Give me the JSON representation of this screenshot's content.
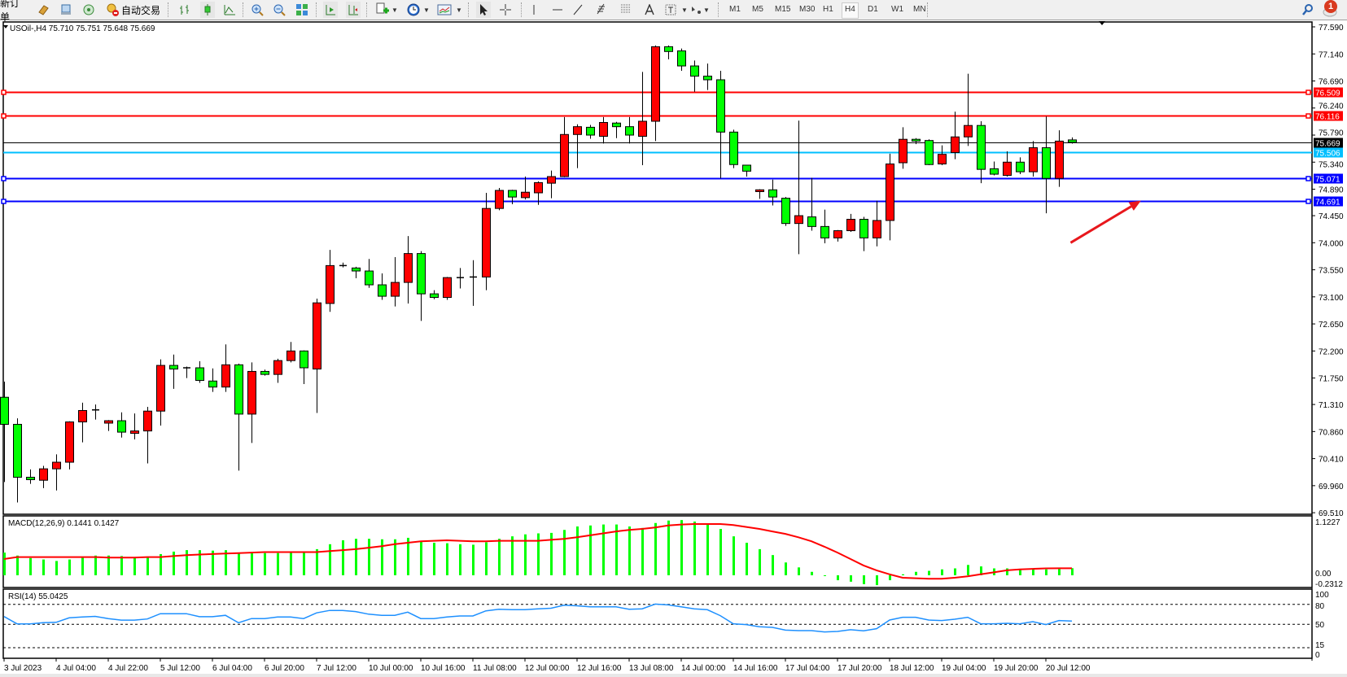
{
  "toolbar": {
    "new_order_label": "新订单",
    "auto_trading_label": "自动交易",
    "timeframes": [
      "M1",
      "M5",
      "M15",
      "M30",
      "H1",
      "H4",
      "D1",
      "W1",
      "MN"
    ],
    "active_timeframe": "H4",
    "notification_count": "1",
    "icons": [
      "market-watch-icon",
      "data-window-icon",
      "navigator-icon",
      "auto-trading-icon",
      "bar-chart-icon",
      "candlestick-icon",
      "line-chart-icon",
      "zoom-in-icon",
      "zoom-out-icon",
      "tile-windows-icon",
      "auto-scroll-icon",
      "chart-shift-icon",
      "indicators-icon",
      "periods-icon",
      "templates-icon",
      "cursor-icon",
      "crosshair-icon",
      "vertical-line-icon",
      "horizontal-line-icon",
      "trendline-icon",
      "fibonacci-icon",
      "fibo-fan-icon",
      "text-icon",
      "text-label-icon",
      "shapes-icon",
      "search-icon",
      "chat-icon"
    ]
  },
  "chart_data": {
    "type": "candlestick",
    "title": "USOil-,H4  75.710 75.751 75.648 75.669",
    "symbol": "USOil-",
    "timeframe": "H4",
    "colors": {
      "bull": "#ff0000",
      "bear": "#00ff00",
      "outline": "#000000",
      "resistance": "#ff0000",
      "support": "#0000ff",
      "bid": "#000000",
      "ask": "#00bfff",
      "macd_hist": "#00ff00",
      "macd_signal": "#ff0000",
      "rsi": "#1e90ff",
      "arrow": "#e8171c"
    },
    "price_axis": {
      "range": [
        69.51,
        77.59
      ],
      "ticks": [
        "77.590",
        "77.140",
        "76.690",
        "76.240",
        "75.790",
        "75.340",
        "74.890",
        "74.450",
        "74.000",
        "73.550",
        "73.100",
        "72.650",
        "72.200",
        "71.750",
        "71.310",
        "70.860",
        "70.410",
        "69.960",
        "69.510"
      ]
    },
    "time_axis": {
      "label_every_bars": 4,
      "labels": [
        "3 Jul 2023",
        "4 Jul 04:00",
        "4 Jul 22:00",
        "5 Jul 12:00",
        "6 Jul 04:00",
        "6 Jul 20:00",
        "7 Jul 12:00",
        "10 Jul 00:00",
        "10 Jul 16:00",
        "11 Jul 08:00",
        "12 Jul 00:00",
        "12 Jul 16:00",
        "13 Jul 08:00",
        "14 Jul 00:00",
        "14 Jul 16:00",
        "17 Jul 04:00",
        "17 Jul 20:00",
        "18 Jul 12:00",
        "19 Jul 04:00",
        "19 Jul 20:00",
        "20 Jul 12:00"
      ]
    },
    "ohlc": [
      [
        71.43,
        71.69,
        70.02,
        70.98
      ],
      [
        70.98,
        71.08,
        69.68,
        70.1
      ],
      [
        70.1,
        70.23,
        69.99,
        70.06
      ],
      [
        70.05,
        70.29,
        69.92,
        70.24
      ],
      [
        70.24,
        70.48,
        69.88,
        70.35
      ],
      [
        70.35,
        71.03,
        70.23,
        71.02
      ],
      [
        71.02,
        71.34,
        70.68,
        71.21
      ],
      [
        71.22,
        71.31,
        71.06,
        71.22
      ],
      [
        71.0,
        71.05,
        70.87,
        71.04
      ],
      [
        71.04,
        71.18,
        70.76,
        70.85
      ],
      [
        70.83,
        71.16,
        70.73,
        70.87
      ],
      [
        70.87,
        71.27,
        70.33,
        71.2
      ],
      [
        71.2,
        72.06,
        70.96,
        71.96
      ],
      [
        71.96,
        72.14,
        71.57,
        71.9
      ],
      [
        71.92,
        71.94,
        71.75,
        71.92
      ],
      [
        71.92,
        72.03,
        71.67,
        71.71
      ],
      [
        71.7,
        71.91,
        71.52,
        71.6
      ],
      [
        71.6,
        72.31,
        71.52,
        71.97
      ],
      [
        71.97,
        71.99,
        70.21,
        71.15
      ],
      [
        71.15,
        72.01,
        70.67,
        71.86
      ],
      [
        71.86,
        71.89,
        71.79,
        71.81
      ],
      [
        71.81,
        72.07,
        71.67,
        72.04
      ],
      [
        72.04,
        72.35,
        72.01,
        72.2
      ],
      [
        72.2,
        72.21,
        71.65,
        71.92
      ],
      [
        71.9,
        73.07,
        71.17,
        73.0
      ],
      [
        72.99,
        73.88,
        72.85,
        73.62
      ],
      [
        73.62,
        73.67,
        73.59,
        73.62
      ],
      [
        73.58,
        73.6,
        73.41,
        73.53
      ],
      [
        73.53,
        73.73,
        73.25,
        73.3
      ],
      [
        73.3,
        73.49,
        73.05,
        73.11
      ],
      [
        73.11,
        73.76,
        72.94,
        73.34
      ],
      [
        73.34,
        74.11,
        72.99,
        73.82
      ],
      [
        73.82,
        73.86,
        72.7,
        73.15
      ],
      [
        73.15,
        73.21,
        73.06,
        73.09
      ],
      [
        73.09,
        73.43,
        73.05,
        73.42
      ],
      [
        73.42,
        73.58,
        73.24,
        73.42
      ],
      [
        73.43,
        73.71,
        72.95,
        73.43
      ],
      [
        73.43,
        74.83,
        73.21,
        74.57
      ],
      [
        74.57,
        74.91,
        74.54,
        74.87
      ],
      [
        74.87,
        74.88,
        74.64,
        74.76
      ],
      [
        74.75,
        75.1,
        74.72,
        74.84
      ],
      [
        74.83,
        75.02,
        74.63,
        75.0
      ],
      [
        74.99,
        75.2,
        74.74,
        75.1
      ],
      [
        75.1,
        76.09,
        75.09,
        75.8
      ],
      [
        75.8,
        75.97,
        75.24,
        75.93
      ],
      [
        75.92,
        75.96,
        75.73,
        75.79
      ],
      [
        75.77,
        76.09,
        75.65,
        76.0
      ],
      [
        75.99,
        76.01,
        75.74,
        75.93
      ],
      [
        75.93,
        76.09,
        75.65,
        75.79
      ],
      [
        75.77,
        76.84,
        75.29,
        76.02
      ],
      [
        76.02,
        77.28,
        75.69,
        77.26
      ],
      [
        77.26,
        77.28,
        77.05,
        77.18
      ],
      [
        77.19,
        77.23,
        76.86,
        76.94
      ],
      [
        76.94,
        77.03,
        76.51,
        76.77
      ],
      [
        76.77,
        76.98,
        76.54,
        76.71
      ],
      [
        76.71,
        76.86,
        75.07,
        75.84
      ],
      [
        75.84,
        75.88,
        75.24,
        75.3
      ],
      [
        75.29,
        75.29,
        75.1,
        75.19
      ],
      [
        74.85,
        74.89,
        74.73,
        74.88
      ],
      [
        74.88,
        75.05,
        74.62,
        74.76
      ],
      [
        74.74,
        74.76,
        74.28,
        74.32
      ],
      [
        74.32,
        76.03,
        73.81,
        74.45
      ],
      [
        74.43,
        75.08,
        74.2,
        74.27
      ],
      [
        74.27,
        74.55,
        73.99,
        74.08
      ],
      [
        74.08,
        74.21,
        74.02,
        74.2
      ],
      [
        74.2,
        74.48,
        74.18,
        74.39
      ],
      [
        74.39,
        74.43,
        73.86,
        74.08
      ],
      [
        74.08,
        74.7,
        73.94,
        74.37
      ],
      [
        74.37,
        75.48,
        74.04,
        75.31
      ],
      [
        75.33,
        75.92,
        75.23,
        75.72
      ],
      [
        75.72,
        75.74,
        75.64,
        75.69
      ],
      [
        75.7,
        75.72,
        75.29,
        75.3
      ],
      [
        75.31,
        75.62,
        75.29,
        75.47
      ],
      [
        75.5,
        76.18,
        75.39,
        75.76
      ],
      [
        75.76,
        76.81,
        75.61,
        75.95
      ],
      [
        75.95,
        76.02,
        74.99,
        75.22
      ],
      [
        75.23,
        75.35,
        75.12,
        75.14
      ],
      [
        75.12,
        75.52,
        75.1,
        75.34
      ],
      [
        75.34,
        75.42,
        75.14,
        75.18
      ],
      [
        75.18,
        75.69,
        75.1,
        75.58
      ],
      [
        75.58,
        76.1,
        74.49,
        75.07
      ],
      [
        75.07,
        75.87,
        74.93,
        75.69
      ],
      [
        75.71,
        75.751,
        75.648,
        75.669
      ]
    ],
    "horizontal_lines": [
      {
        "price": 76.509,
        "label": "76.509",
        "color": "#ff0000",
        "kind": "resistance"
      },
      {
        "price": 76.116,
        "label": "76.116",
        "color": "#ff0000",
        "kind": "resistance"
      },
      {
        "price": 75.669,
        "label": "75.669",
        "color": "#000000",
        "kind": "bid"
      },
      {
        "price": 75.506,
        "label": "75.506",
        "color": "#00bfff",
        "kind": "ask"
      },
      {
        "price": 75.071,
        "label": "75.071",
        "color": "#0000ff",
        "kind": "support"
      },
      {
        "price": 74.691,
        "label": "74.691",
        "color": "#0000ff",
        "kind": "support"
      }
    ],
    "annotation_arrow": {
      "from": {
        "bar": 81.9,
        "price": 74.0
      },
      "to": {
        "bar": 87.3,
        "price": 74.7
      },
      "color": "#e8171c"
    },
    "macd": {
      "title": "MACD(12,26,9) 0.1441 0.1427",
      "axis_labels": [
        "1.1227",
        "0.00",
        "-0.2312"
      ],
      "range": [
        -0.2312,
        1.1227
      ],
      "histogram": [
        0.46,
        0.4,
        0.35,
        0.32,
        0.29,
        0.32,
        0.36,
        0.4,
        0.4,
        0.39,
        0.36,
        0.36,
        0.43,
        0.48,
        0.51,
        0.51,
        0.5,
        0.51,
        0.45,
        0.45,
        0.45,
        0.45,
        0.47,
        0.46,
        0.53,
        0.63,
        0.71,
        0.74,
        0.74,
        0.73,
        0.73,
        0.76,
        0.69,
        0.66,
        0.65,
        0.63,
        0.62,
        0.67,
        0.74,
        0.79,
        0.83,
        0.85,
        0.86,
        0.92,
        0.99,
        1.01,
        1.03,
        1.03,
        0.99,
        0.96,
        1.06,
        1.11,
        1.12,
        1.09,
        1.04,
        0.94,
        0.79,
        0.66,
        0.53,
        0.41,
        0.26,
        0.16,
        0.07,
        -0.01,
        -0.1,
        -0.13,
        -0.18,
        -0.2,
        -0.1,
        0.02,
        0.07,
        0.09,
        0.12,
        0.14,
        0.21,
        0.18,
        0.14,
        0.14,
        0.13,
        0.13,
        0.12,
        0.13,
        0.1441
      ],
      "signal": [
        0.33,
        0.37,
        0.37,
        0.37,
        0.37,
        0.37,
        0.37,
        0.37,
        0.36,
        0.36,
        0.36,
        0.37,
        0.37,
        0.39,
        0.41,
        0.42,
        0.43,
        0.44,
        0.45,
        0.46,
        0.47,
        0.47,
        0.47,
        0.47,
        0.47,
        0.49,
        0.51,
        0.53,
        0.56,
        0.59,
        0.63,
        0.66,
        0.69,
        0.7,
        0.71,
        0.7,
        0.69,
        0.69,
        0.7,
        0.7,
        0.7,
        0.7,
        0.72,
        0.74,
        0.77,
        0.81,
        0.85,
        0.89,
        0.92,
        0.94,
        0.97,
        1.01,
        1.03,
        1.04,
        1.04,
        1.04,
        1.02,
        0.98,
        0.94,
        0.89,
        0.84,
        0.77,
        0.69,
        0.58,
        0.46,
        0.33,
        0.2,
        0.1,
        0.02,
        -0.05,
        -0.06,
        -0.07,
        -0.07,
        -0.05,
        -0.02,
        0.02,
        0.06,
        0.1,
        0.12,
        0.13,
        0.14,
        0.1427,
        0.1427
      ]
    },
    "rsi": {
      "title": "RSI(14) 55.0425",
      "axis_labels": [
        "100",
        "80",
        "50",
        "15",
        "0"
      ],
      "levels": [
        80,
        50,
        15
      ],
      "range": [
        0,
        100
      ],
      "values": [
        61.7,
        50.7,
        50.7,
        52.5,
        53,
        59.8,
        61,
        61.9,
        58.7,
        56.3,
        56.3,
        58,
        66,
        66,
        66,
        61.5,
        61.5,
        63.5,
        52.5,
        58.7,
        58.7,
        61,
        61,
        58.7,
        67.2,
        70.8,
        70.8,
        69.2,
        65.2,
        63.5,
        63.5,
        68.3,
        58.7,
        58.7,
        61,
        62.6,
        62.6,
        70.3,
        72.7,
        72,
        72,
        73.3,
        74.1,
        78.6,
        77.8,
        76.2,
        76.2,
        76.2,
        72.7,
        73.3,
        80.4,
        79.2,
        76.2,
        73.3,
        72,
        63,
        50.8,
        49.6,
        46.3,
        45.5,
        41.4,
        40.6,
        40.6,
        38.6,
        39.4,
        41.9,
        40.2,
        43.5,
        56.5,
        60.6,
        60.6,
        56.5,
        55.7,
        57.7,
        60.6,
        50.8,
        50.8,
        51.6,
        50.8,
        54,
        49.6,
        55.7,
        55.04
      ]
    }
  }
}
